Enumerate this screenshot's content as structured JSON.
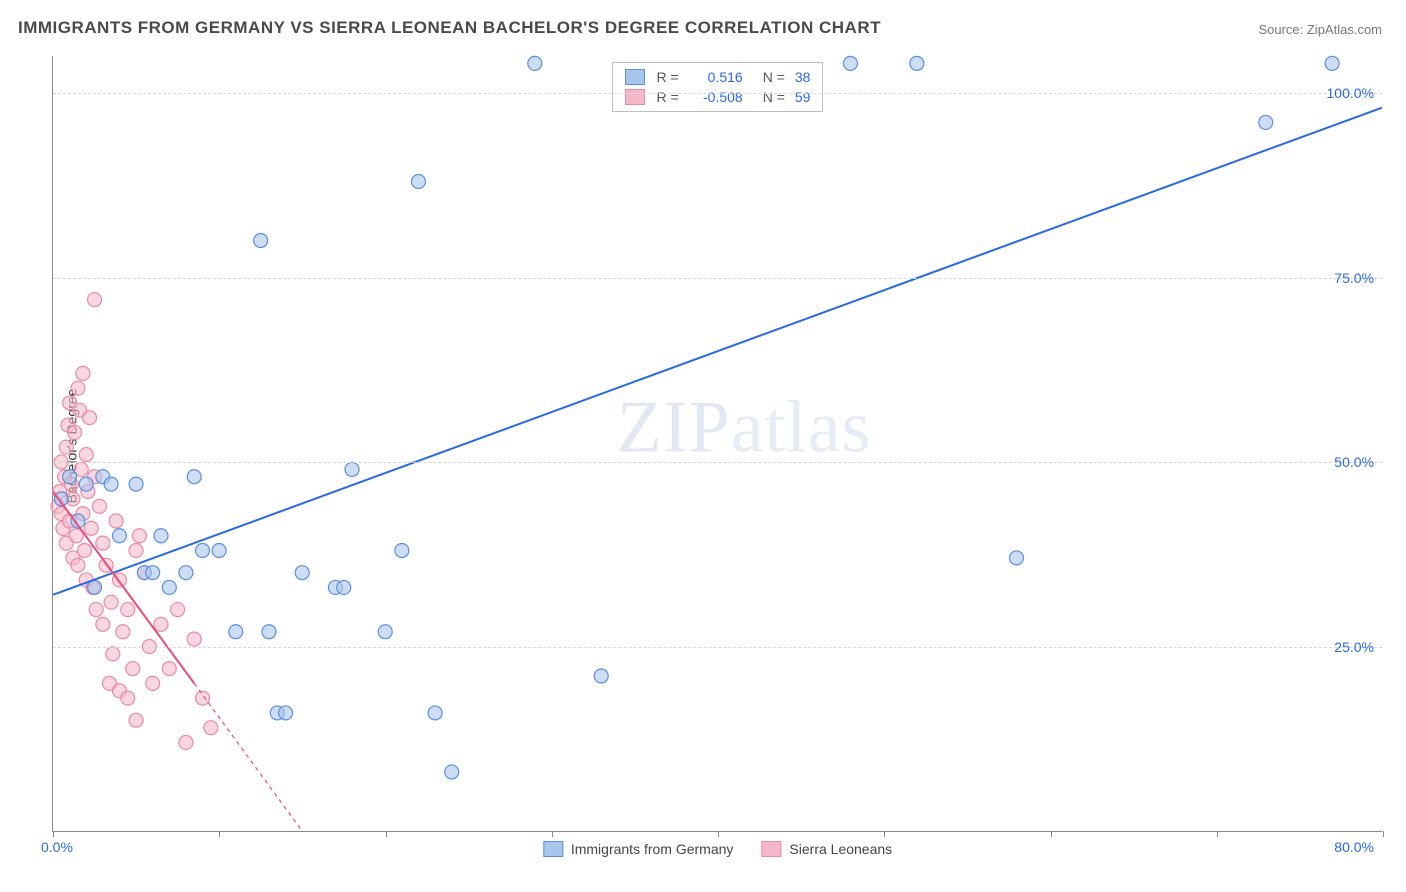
{
  "title": "IMMIGRANTS FROM GERMANY VS SIERRA LEONEAN BACHELOR'S DEGREE CORRELATION CHART",
  "source": "Source: ZipAtlas.com",
  "y_axis_label": "Bachelor's Degree",
  "watermark": "ZIPatlas",
  "chart": {
    "type": "scatter",
    "xlim": [
      0,
      80
    ],
    "ylim": [
      0,
      105
    ],
    "x_tick_positions": [
      0,
      10,
      20,
      30,
      40,
      50,
      60,
      70,
      80
    ],
    "x_tick_labels_shown": {
      "0": "0.0%",
      "80": "80.0%"
    },
    "y_grid": [
      25,
      50,
      75,
      100
    ],
    "y_tick_labels": {
      "25": "25.0%",
      "50": "50.0%",
      "75": "75.0%",
      "100": "100.0%"
    },
    "background_color": "#ffffff",
    "grid_color": "#d8d8d8",
    "axis_color": "#888888",
    "label_color": "#2968e6",
    "marker_radius": 7,
    "marker_stroke_width": 1.2,
    "marker_fill_opacity": 0.28,
    "line_width": 2,
    "series": [
      {
        "name": "Immigrants from Germany",
        "color_stroke": "#5b8fe0",
        "color_fill": "#a8c5ec",
        "R": "0.516",
        "N": "38",
        "trend": {
          "x1": 0,
          "y1": 32,
          "x2": 80,
          "y2": 98,
          "dash": null,
          "color": "#2968e6"
        },
        "points": [
          [
            0.5,
            45
          ],
          [
            1,
            48
          ],
          [
            1.5,
            42
          ],
          [
            2,
            47
          ],
          [
            2.5,
            33
          ],
          [
            3,
            48
          ],
          [
            3.5,
            47
          ],
          [
            4,
            40
          ],
          [
            5,
            47
          ],
          [
            5.5,
            35
          ],
          [
            6,
            35
          ],
          [
            6.5,
            40
          ],
          [
            7,
            33
          ],
          [
            8,
            35
          ],
          [
            8.5,
            48
          ],
          [
            9,
            38
          ],
          [
            10,
            38
          ],
          [
            11,
            27
          ],
          [
            12.5,
            80
          ],
          [
            13,
            27
          ],
          [
            13.5,
            16
          ],
          [
            14,
            16
          ],
          [
            15,
            35
          ],
          [
            17,
            33
          ],
          [
            17.5,
            33
          ],
          [
            18,
            49
          ],
          [
            20,
            27
          ],
          [
            21,
            38
          ],
          [
            22,
            88
          ],
          [
            23,
            16
          ],
          [
            24,
            8
          ],
          [
            29,
            104
          ],
          [
            33,
            21
          ],
          [
            48,
            104
          ],
          [
            52,
            104
          ],
          [
            58,
            37
          ],
          [
            73,
            96
          ],
          [
            77,
            104
          ]
        ]
      },
      {
        "name": "Sierra Leoneans",
        "color_stroke": "#e98aa6",
        "color_fill": "#f4b8c9",
        "R": "-0.508",
        "N": "59",
        "trend": {
          "x1": 0,
          "y1": 46,
          "x2": 8.5,
          "y2": 20,
          "dash": null,
          "color": "#e94b7a"
        },
        "trend_ext": {
          "x1": 8.5,
          "y1": 20,
          "x2": 15,
          "y2": 0,
          "dash": "4,4",
          "color": "#e94b7a"
        },
        "points": [
          [
            0.3,
            44
          ],
          [
            0.4,
            46
          ],
          [
            0.5,
            50
          ],
          [
            0.5,
            43
          ],
          [
            0.6,
            41
          ],
          [
            0.7,
            48
          ],
          [
            0.8,
            52
          ],
          [
            0.8,
            39
          ],
          [
            0.9,
            55
          ],
          [
            1.0,
            42
          ],
          [
            1.0,
            58
          ],
          [
            1.1,
            47
          ],
          [
            1.2,
            45
          ],
          [
            1.2,
            37
          ],
          [
            1.3,
            54
          ],
          [
            1.4,
            40
          ],
          [
            1.5,
            60
          ],
          [
            1.5,
            36
          ],
          [
            1.6,
            57
          ],
          [
            1.7,
            49
          ],
          [
            1.8,
            43
          ],
          [
            1.8,
            62
          ],
          [
            1.9,
            38
          ],
          [
            2.0,
            51
          ],
          [
            2.0,
            34
          ],
          [
            2.1,
            46
          ],
          [
            2.2,
            56
          ],
          [
            2.3,
            41
          ],
          [
            2.4,
            33
          ],
          [
            2.5,
            48
          ],
          [
            2.5,
            72
          ],
          [
            2.6,
            30
          ],
          [
            2.8,
            44
          ],
          [
            3.0,
            39
          ],
          [
            3.0,
            28
          ],
          [
            3.2,
            36
          ],
          [
            3.4,
            20
          ],
          [
            3.5,
            31
          ],
          [
            3.6,
            24
          ],
          [
            3.8,
            42
          ],
          [
            4.0,
            19
          ],
          [
            4.0,
            34
          ],
          [
            4.2,
            27
          ],
          [
            4.5,
            30
          ],
          [
            4.5,
            18
          ],
          [
            4.8,
            22
          ],
          [
            5.0,
            38
          ],
          [
            5.0,
            15
          ],
          [
            5.2,
            40
          ],
          [
            5.5,
            35
          ],
          [
            5.8,
            25
          ],
          [
            6.0,
            20
          ],
          [
            6.5,
            28
          ],
          [
            7.0,
            22
          ],
          [
            7.5,
            30
          ],
          [
            8.0,
            12
          ],
          [
            8.5,
            26
          ],
          [
            9.0,
            18
          ],
          [
            9.5,
            14
          ]
        ]
      }
    ]
  },
  "legend_top": {
    "r_label": "R =",
    "n_label": "N ="
  },
  "legend_bottom": [
    {
      "label": "Immigrants from Germany",
      "swatch_stroke": "#5b8fe0",
      "swatch_fill": "#a8c5ec"
    },
    {
      "label": "Sierra Leoneans",
      "swatch_stroke": "#e98aa6",
      "swatch_fill": "#f4b8c9"
    }
  ]
}
